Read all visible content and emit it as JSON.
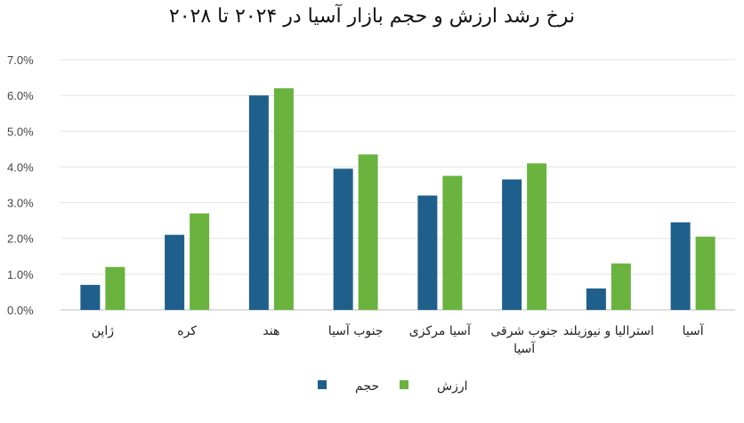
{
  "chart_data": {
    "type": "bar",
    "title": "نرخ رشد ارزش و حجم بازار آسیا در ۲۰۲۴ تا ۲۰۲۸",
    "categories": [
      "ژاپن",
      "کره",
      "هند",
      "جنوب آسیا",
      "آسیا مرکزی",
      "جنوب شرقی آسیا",
      "استرالیا و نیوزیلند",
      "آسیا"
    ],
    "series": [
      {
        "name": "حجم",
        "color": "#1f5f8b",
        "values": [
          0.7,
          2.1,
          6.0,
          3.95,
          3.2,
          3.65,
          0.6,
          2.45
        ]
      },
      {
        "name": "ارزش",
        "color": "#6ab33f",
        "values": [
          1.2,
          2.7,
          6.2,
          4.35,
          3.75,
          4.1,
          1.3,
          2.05
        ]
      }
    ],
    "yticks": [
      "0.0%",
      "1.0%",
      "2.0%",
      "3.0%",
      "4.0%",
      "5.0%",
      "6.0%",
      "7.0%"
    ],
    "ylim": [
      0,
      7
    ],
    "grid": true,
    "legend_position": "bottom"
  }
}
